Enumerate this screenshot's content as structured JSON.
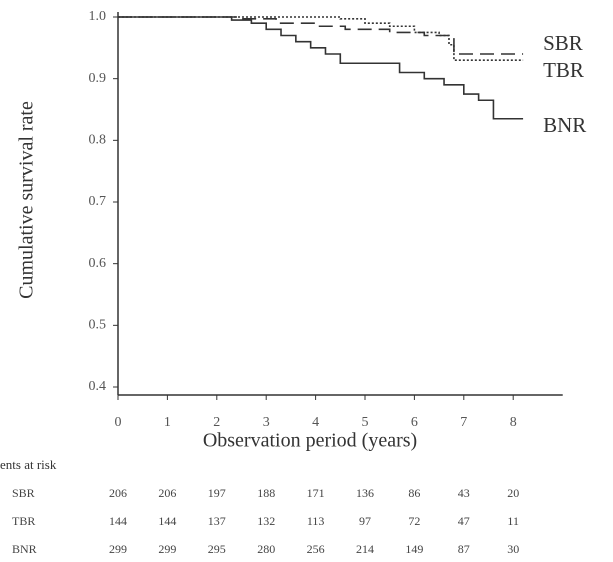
{
  "chart_data": {
    "type": "step",
    "xlabel": "Observation period (years)",
    "ylabel": "Cumulative survival rate",
    "xlim": [
      0,
      8.8
    ],
    "ylim": [
      0.4,
      1.0
    ],
    "xticks": [
      0,
      1,
      2,
      3,
      4,
      5,
      6,
      7,
      8
    ],
    "yticks": [
      {
        "value": 1.0,
        "label": "1.0"
      },
      0.9,
      0.8,
      0.7,
      0.6,
      0.5,
      0.4
    ],
    "series": [
      {
        "name": "SBR",
        "color": "#333333",
        "style": "dashed",
        "x": [
          0,
          2.5,
          3.2,
          4.0,
          4.6,
          5.5,
          6.2,
          6.8,
          8.2
        ],
        "values": [
          1.0,
          0.997,
          0.99,
          0.985,
          0.98,
          0.975,
          0.97,
          0.94,
          0.94
        ]
      },
      {
        "name": "TBR",
        "color": "#333333",
        "style": "dotted",
        "x": [
          0,
          4.5,
          5.0,
          5.5,
          6.0,
          6.5,
          6.7,
          6.8,
          8.2
        ],
        "values": [
          1.0,
          0.997,
          0.99,
          0.985,
          0.975,
          0.97,
          0.955,
          0.93,
          0.93
        ]
      },
      {
        "name": "BNR",
        "color": "#333333",
        "style": "solid",
        "x": [
          0,
          2.3,
          2.7,
          3.0,
          3.3,
          3.6,
          3.9,
          4.2,
          4.5,
          5.5,
          5.7,
          6.2,
          6.6,
          7.0,
          7.3,
          7.6,
          8.2
        ],
        "values": [
          1.0,
          0.995,
          0.99,
          0.98,
          0.97,
          0.96,
          0.95,
          0.94,
          0.925,
          0.925,
          0.91,
          0.9,
          0.89,
          0.875,
          0.865,
          0.835,
          0.835
        ]
      }
    ],
    "risk_table": {
      "title": "ents at risk",
      "rows": [
        {
          "name": "SBR",
          "values": [
            206,
            206,
            197,
            188,
            171,
            136,
            86,
            43,
            20
          ]
        },
        {
          "name": "TBR",
          "values": [
            144,
            144,
            137,
            132,
            113,
            97,
            72,
            47,
            11
          ]
        },
        {
          "name": "BNR",
          "values": [
            299,
            299,
            295,
            280,
            256,
            214,
            149,
            87,
            30
          ]
        }
      ]
    }
  }
}
